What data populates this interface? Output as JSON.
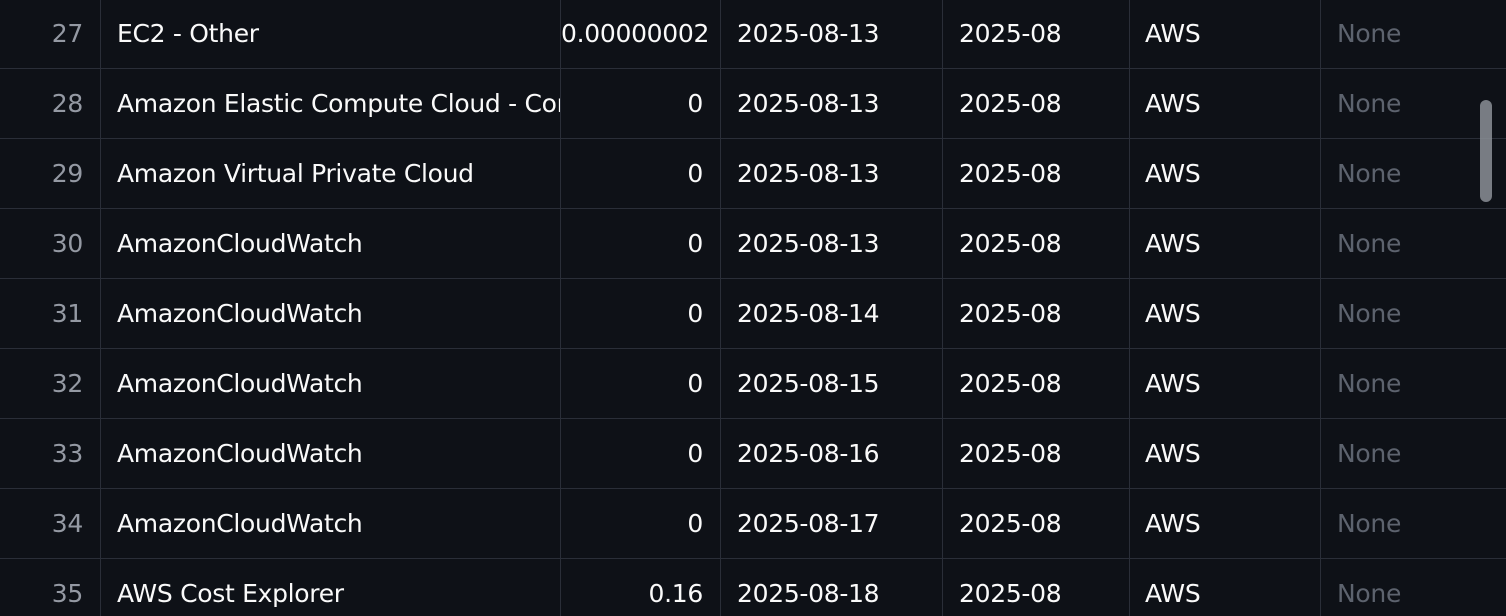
{
  "table": {
    "rows": [
      {
        "index": "27",
        "service": "EC2 - Other",
        "cost": "0.00000002",
        "date": "2025-08-13",
        "month": "2025-08",
        "provider": "AWS",
        "note": "None"
      },
      {
        "index": "28",
        "service": "Amazon Elastic Compute Cloud - Compute",
        "cost": "0",
        "date": "2025-08-13",
        "month": "2025-08",
        "provider": "AWS",
        "note": "None"
      },
      {
        "index": "29",
        "service": "Amazon Virtual Private Cloud",
        "cost": "0",
        "date": "2025-08-13",
        "month": "2025-08",
        "provider": "AWS",
        "note": "None"
      },
      {
        "index": "30",
        "service": "AmazonCloudWatch",
        "cost": "0",
        "date": "2025-08-13",
        "month": "2025-08",
        "provider": "AWS",
        "note": "None"
      },
      {
        "index": "31",
        "service": "AmazonCloudWatch",
        "cost": "0",
        "date": "2025-08-14",
        "month": "2025-08",
        "provider": "AWS",
        "note": "None"
      },
      {
        "index": "32",
        "service": "AmazonCloudWatch",
        "cost": "0",
        "date": "2025-08-15",
        "month": "2025-08",
        "provider": "AWS",
        "note": "None"
      },
      {
        "index": "33",
        "service": "AmazonCloudWatch",
        "cost": "0",
        "date": "2025-08-16",
        "month": "2025-08",
        "provider": "AWS",
        "note": "None"
      },
      {
        "index": "34",
        "service": "AmazonCloudWatch",
        "cost": "0",
        "date": "2025-08-17",
        "month": "2025-08",
        "provider": "AWS",
        "note": "None"
      },
      {
        "index": "35",
        "service": "AWS Cost Explorer",
        "cost": "0.16",
        "date": "2025-08-18",
        "month": "2025-08",
        "provider": "AWS",
        "note": "None"
      }
    ]
  },
  "colors": {
    "background": "#0e1117",
    "grid_line": "#2a2e38",
    "text": "#fafafa",
    "index_text": "#9499a3",
    "null_text": "#5d636e"
  }
}
